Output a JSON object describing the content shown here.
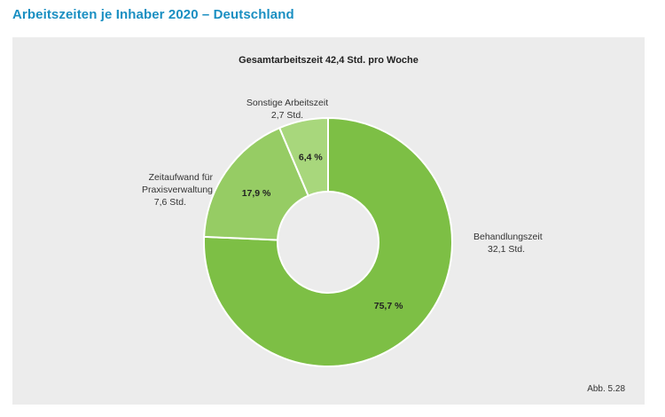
{
  "page": {
    "title": "Arbeitszeiten je Inhaber 2020 – Deutschland",
    "figure_ref": "Abb. 5.28"
  },
  "colors": {
    "title": "#1a8fc2",
    "panel_bg": "#ececec",
    "slice_main": "#7dbf45",
    "slice_mid": "#96cc64",
    "slice_light": "#a8d77c"
  },
  "chart_data": {
    "type": "pie",
    "variant": "donut",
    "title": "Gesamtarbeitszeit 42,4 Std. pro Woche",
    "slices": [
      {
        "name": "Behandlungszeit",
        "hours_label": "32,1 Std.",
        "value": 75.7,
        "pct_label": "75,7 %",
        "color": "#7dbf45"
      },
      {
        "name": "Zeitaufwand für Praxisverwaltung",
        "name_lines": [
          "Zeitaufwand für",
          "Praxisverwaltung"
        ],
        "hours_label": "7,6 Std.",
        "value": 17.9,
        "pct_label": "17,9 %",
        "color": "#96cc64"
      },
      {
        "name": "Sonstige Arbeitszeit",
        "hours_label": "2,7 Std.",
        "value": 6.4,
        "pct_label": "6,4 %",
        "color": "#a8d77c"
      }
    ]
  }
}
